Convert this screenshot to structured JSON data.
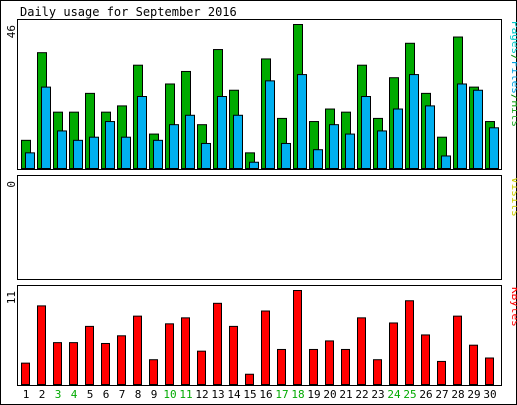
{
  "chart_data": {
    "type": "bar",
    "title": "Daily usage for September 2016",
    "categories": [
      "1",
      "2",
      "3",
      "4",
      "5",
      "6",
      "7",
      "8",
      "9",
      "10",
      "11",
      "12",
      "13",
      "14",
      "15",
      "16",
      "17",
      "18",
      "19",
      "20",
      "21",
      "22",
      "23",
      "24",
      "25",
      "26",
      "27",
      "28",
      "29",
      "30"
    ],
    "weekend_days": [
      "3",
      "4",
      "10",
      "11",
      "17",
      "18",
      "24",
      "25"
    ],
    "panels": [
      {
        "name": "hits-files-pages",
        "ylabel_parts": [
          {
            "text": "Pages",
            "color": "#00c8c8"
          },
          {
            "text": "/",
            "color": "#008800"
          },
          {
            "text": "Files",
            "color": "#00a0e0"
          },
          {
            "text": "/",
            "color": "#008800"
          },
          {
            "text": "Hits",
            "color": "#22aa22"
          }
        ],
        "ymax_label": "46",
        "ylim": [
          0,
          46
        ],
        "series": [
          {
            "name": "Hits",
            "color": "#00aa00",
            "values": [
              9,
              37,
              18,
              18,
              24,
              18,
              20,
              33,
              11,
              27,
              31,
              14,
              38,
              25,
              5,
              35,
              16,
              46,
              15,
              19,
              18,
              33,
              16,
              29,
              40,
              24,
              10,
              42,
              26,
              15
            ]
          },
          {
            "name": "Files",
            "color": "#00b0f0",
            "values": [
              5,
              26,
              12,
              9,
              10,
              15,
              10,
              23,
              9,
              14,
              17,
              8,
              23,
              17,
              2,
              28,
              8,
              30,
              6,
              14,
              11,
              23,
              12,
              19,
              30,
              20,
              4,
              27,
              25,
              13
            ]
          },
          {
            "name": "Pages",
            "color": "#00cccc",
            "values": [
              0,
              0,
              0,
              0,
              0,
              0,
              0,
              0,
              0,
              0,
              0,
              0,
              0,
              0,
              0,
              0,
              0,
              0,
              0,
              0,
              0,
              0,
              0,
              0,
              0,
              0,
              0,
              0,
              0,
              0
            ]
          }
        ]
      },
      {
        "name": "visits",
        "ylabel_parts": [
          {
            "text": "Visits",
            "color": "#cccc00"
          }
        ],
        "ymax_label": "0",
        "ylim": [
          0,
          1
        ],
        "series": [
          {
            "name": "Visits",
            "color": "#ffcc00",
            "values": [
              0,
              0,
              0,
              0,
              0,
              0,
              0,
              0,
              0,
              0,
              0,
              0,
              0,
              0,
              0,
              0,
              0,
              0,
              0,
              0,
              0,
              0,
              0,
              0,
              0,
              0,
              0,
              0,
              0,
              0
            ]
          }
        ]
      },
      {
        "name": "kbytes",
        "ylabel_parts": [
          {
            "text": "KBytes",
            "color": "#ff0000"
          }
        ],
        "ymax_label": "11",
        "ylim": [
          0,
          11
        ],
        "series": [
          {
            "name": "KBytes",
            "color": "#ff0000",
            "values": [
              2.5,
              9.2,
              4.9,
              4.9,
              6.8,
              4.8,
              5.7,
              8.0,
              2.9,
              7.1,
              7.8,
              3.9,
              9.5,
              6.8,
              1.2,
              8.6,
              4.1,
              11,
              4.1,
              5.1,
              4.1,
              7.8,
              2.9,
              7.2,
              9.8,
              5.8,
              2.7,
              8.0,
              4.6,
              3.1
            ]
          }
        ]
      }
    ],
    "colors": {
      "background": "#ffffff",
      "border": "#000000",
      "day_label": "#000000",
      "weekend_label": "#00aa00"
    },
    "grid": false,
    "legend": "right-vertical"
  }
}
